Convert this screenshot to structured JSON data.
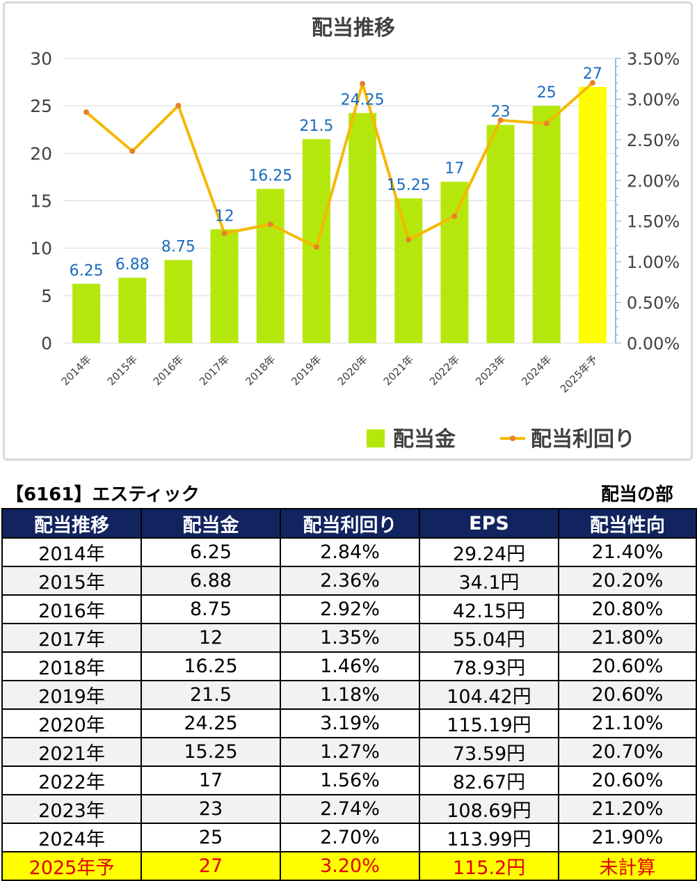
{
  "chart_data": {
    "type": "bar",
    "title": "配当推移",
    "categories": [
      "2014年",
      "2015年",
      "2016年",
      "2017年",
      "2018年",
      "2019年",
      "2020年",
      "2021年",
      "2022年",
      "2023年",
      "2024年",
      "2025年予"
    ],
    "series": [
      {
        "name": "配当金",
        "type": "bar",
        "axis": "left",
        "values": [
          6.25,
          6.88,
          8.75,
          12,
          16.25,
          21.5,
          24.25,
          15.25,
          17,
          23,
          25,
          27
        ],
        "labels": [
          "6.25",
          "6.88",
          "8.75",
          "12",
          "16.25",
          "21.5",
          "24.25",
          "15.25",
          "17",
          "23",
          "25",
          "27"
        ]
      },
      {
        "name": "配当利回り",
        "type": "line",
        "axis": "right",
        "values": [
          2.84,
          2.36,
          2.92,
          1.35,
          1.46,
          1.18,
          3.19,
          1.27,
          1.56,
          2.74,
          2.7,
          3.2
        ]
      }
    ],
    "ylim": [
      0,
      30
    ],
    "yticks": [
      "0",
      "5",
      "10",
      "15",
      "20",
      "25",
      "30"
    ],
    "y2lim": [
      0,
      3.5
    ],
    "y2ticks": [
      "0.00%",
      "0.50%",
      "1.00%",
      "1.50%",
      "2.00%",
      "2.50%",
      "3.00%",
      "3.50%"
    ],
    "highlight_category": "2025年予",
    "legend_position": "bottom-right",
    "grid": true,
    "colors": {
      "bar": "#b4e80c",
      "bar_highlight": "#ffff00",
      "line": "#f5b800",
      "marker": "#e8812c",
      "label": "#1a6bbf",
      "text": "#404040",
      "grid": "#d9d9d9",
      "y2_axis": "#6fa8dc"
    }
  },
  "caption": {
    "left": "【6161】エスティック",
    "right": "配当の部"
  },
  "table": {
    "headers": [
      "配当推移",
      "配当金",
      "配当利回り",
      "EPS",
      "配当性向"
    ],
    "rows": [
      [
        "2014年",
        "6.25",
        "2.84%",
        "29.24円",
        "21.40%"
      ],
      [
        "2015年",
        "6.88",
        "2.36%",
        "34.1円",
        "20.20%"
      ],
      [
        "2016年",
        "8.75",
        "2.92%",
        "42.15円",
        "20.80%"
      ],
      [
        "2017年",
        "12",
        "1.35%",
        "55.04円",
        "21.80%"
      ],
      [
        "2018年",
        "16.25",
        "1.46%",
        "78.93円",
        "20.60%"
      ],
      [
        "2019年",
        "21.5",
        "1.18%",
        "104.42円",
        "20.60%"
      ],
      [
        "2020年",
        "24.25",
        "3.19%",
        "115.19円",
        "21.10%"
      ],
      [
        "2021年",
        "15.25",
        "1.27%",
        "73.59円",
        "20.70%"
      ],
      [
        "2022年",
        "17",
        "1.56%",
        "82.67円",
        "20.60%"
      ],
      [
        "2023年",
        "23",
        "2.74%",
        "108.69円",
        "21.20%"
      ],
      [
        "2024年",
        "25",
        "2.70%",
        "113.99円",
        "21.90%"
      ],
      [
        "2025年予",
        "27",
        "3.20%",
        "115.2円",
        "未計算"
      ]
    ]
  }
}
